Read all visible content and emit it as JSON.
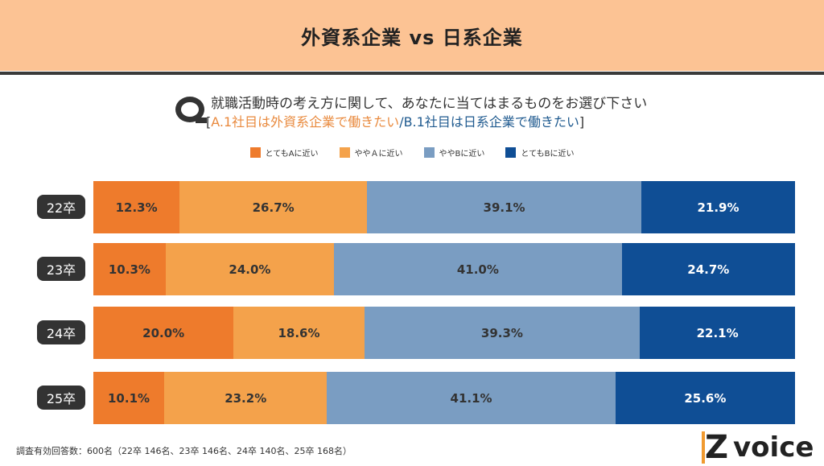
{
  "title": "外資系企業 vs 日系企業",
  "question": {
    "line1": "就職活動時の考え方に関して、あなたに当てはまるものをお選び下さい",
    "open": "[",
    "a": "A.1社目は外資系企業で働きたい",
    "sep": "/",
    "b": "B.1社目は日系企業で働きたい",
    "close": "]"
  },
  "colors": {
    "title_bg": "#FCC394",
    "a_strong": "#EE7B2C",
    "a_some": "#F4A24B",
    "b_some": "#7A9DC2",
    "b_strong": "#0F4E95",
    "question_a": "#E98A3E",
    "question_b": "#1f5a8f"
  },
  "chart_data": {
    "type": "bar",
    "orientation": "horizontal-stacked-100",
    "categories": [
      "22卒",
      "23卒",
      "24卒",
      "25卒"
    ],
    "series": [
      {
        "name": "とてもAに近い",
        "color": "#EE7B2C",
        "values": [
          12.3,
          10.3,
          20.0,
          10.1
        ],
        "labels": [
          "12.3%",
          "10.3%",
          "20.0%",
          "10.1%"
        ]
      },
      {
        "name": "ややＡに近い",
        "color": "#F4A24B",
        "values": [
          26.7,
          24.0,
          18.6,
          23.2
        ],
        "labels": [
          "26.7%",
          "24.0%",
          "18.6%",
          "23.2%"
        ]
      },
      {
        "name": "ややBに近い",
        "color": "#7A9DC2",
        "values": [
          39.1,
          41.0,
          39.3,
          41.1
        ],
        "labels": [
          "39.1%",
          "41.0%",
          "39.3%",
          "41.1%"
        ]
      },
      {
        "name": "とてもBに近い",
        "color": "#0F4E95",
        "values": [
          21.9,
          24.7,
          22.1,
          25.6
        ],
        "labels": [
          "21.9%",
          "24.7%",
          "22.1%",
          "25.6%"
        ]
      }
    ],
    "legend_position": "top"
  },
  "footnote": "調査有効回答数：600名（22卒 146名、23卒 146名、24卒 140名、25卒 168名）",
  "logo": {
    "text": "Z voice",
    "z": "Z",
    "rest": "voice"
  }
}
